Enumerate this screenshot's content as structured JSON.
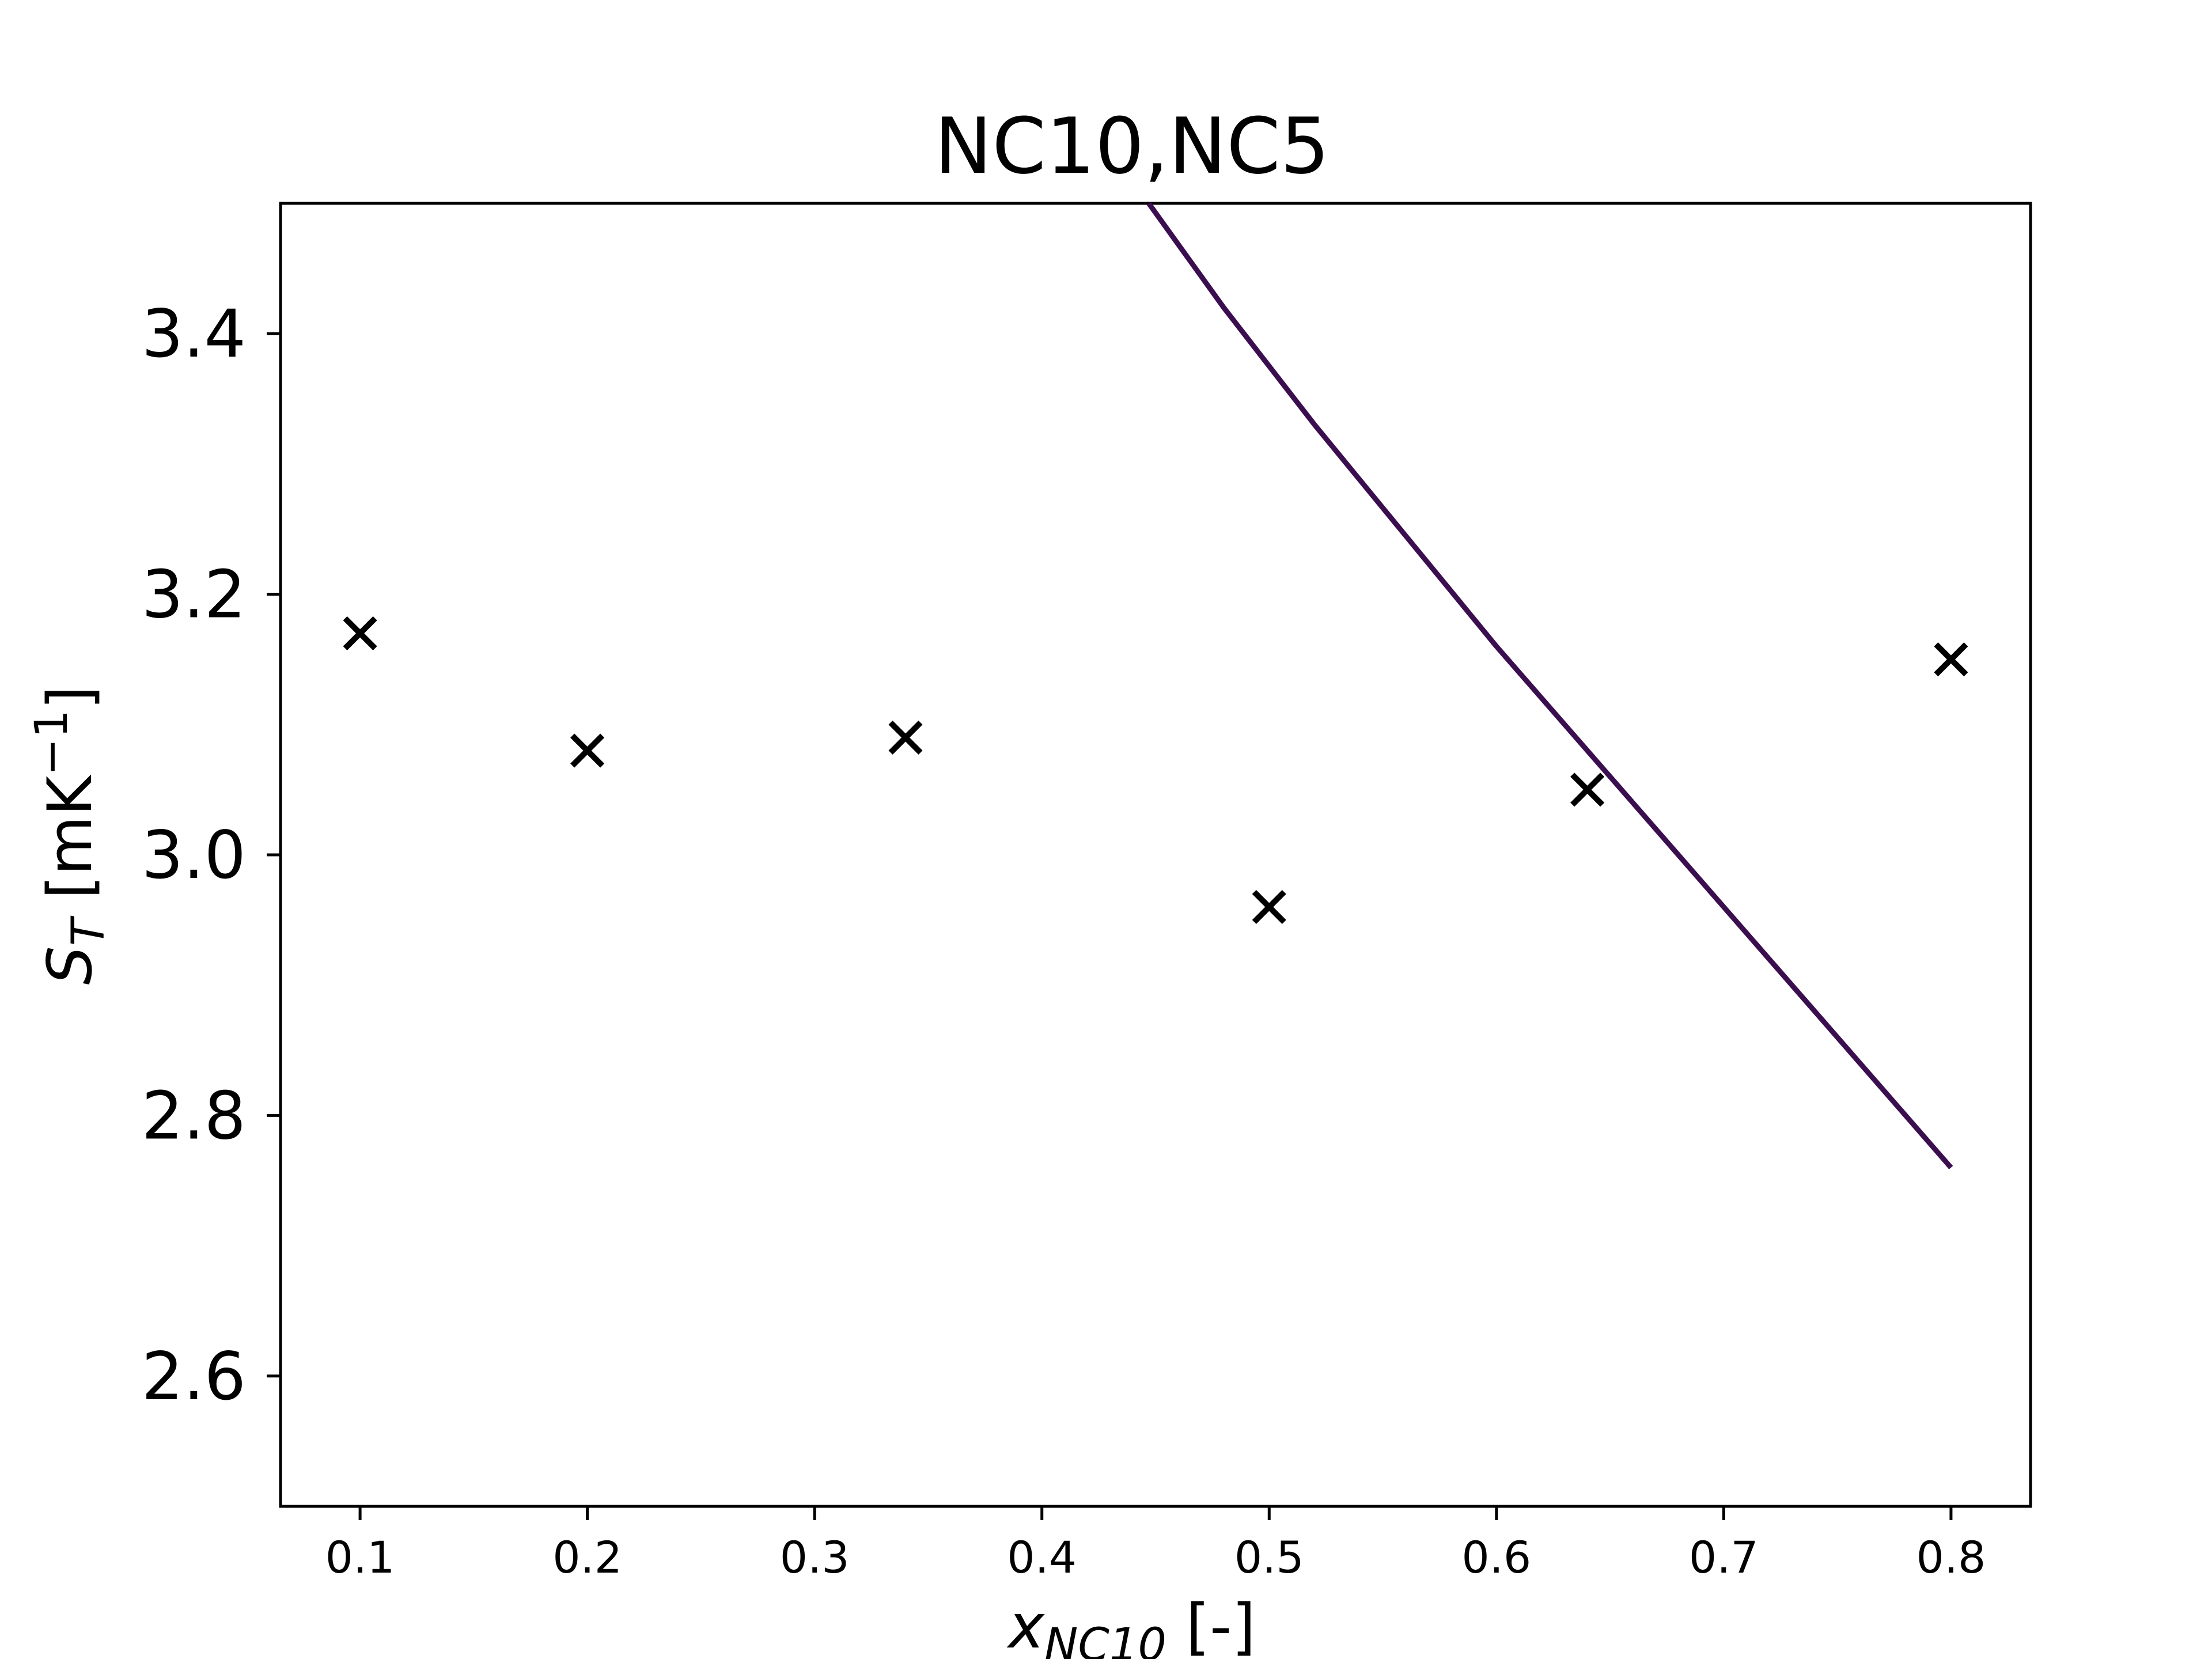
{
  "chart_data": {
    "type": "line",
    "title": "NC10,NC5",
    "xlabel": {
      "symbol": "x",
      "subscript": "NC10",
      "unit": "[-]"
    },
    "ylabel": {
      "symbol": "S",
      "subscript": "T",
      "unit_prefix": "[mK",
      "unit_superscript": "−1",
      "unit_suffix": "]"
    },
    "xlim": [
      0.065,
      0.835
    ],
    "ylim": [
      2.5,
      3.5
    ],
    "xticks": [
      0.1,
      0.2,
      0.3,
      0.4,
      0.5,
      0.6,
      0.7,
      0.8
    ],
    "xtick_labels": [
      "0.1",
      "0.2",
      "0.3",
      "0.4",
      "0.5",
      "0.6",
      "0.7",
      "0.8"
    ],
    "yticks": [
      2.6,
      2.8,
      3.0,
      3.2,
      3.4
    ],
    "ytick_labels": [
      "2.6",
      "2.8",
      "3.0",
      "3.2",
      "3.4"
    ],
    "grid": false,
    "series": [
      {
        "kind": "line",
        "color": "#3b0f4f",
        "x": [
          0.447,
          0.48,
          0.52,
          0.56,
          0.6,
          0.64,
          0.68,
          0.72,
          0.76,
          0.8
        ],
        "y": [
          3.5,
          3.42,
          3.33,
          3.245,
          3.16,
          3.08,
          3.0,
          2.92,
          2.84,
          2.76
        ]
      },
      {
        "kind": "scatter",
        "marker": "x",
        "color": "#000000",
        "x": [
          0.1,
          0.2,
          0.34,
          0.5,
          0.64,
          0.8
        ],
        "y": [
          3.17,
          3.08,
          3.09,
          2.96,
          3.05,
          3.15
        ]
      }
    ]
  }
}
